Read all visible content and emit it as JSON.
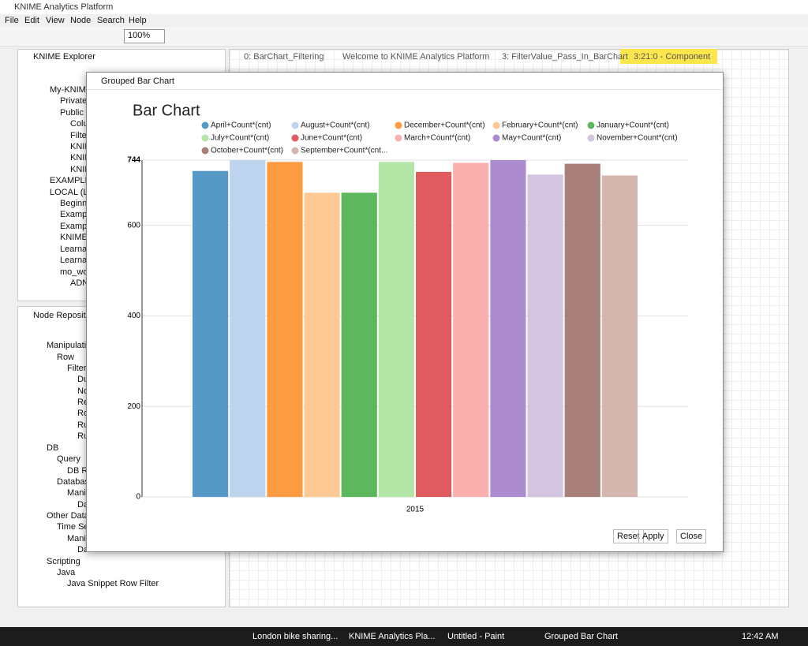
{
  "app": {
    "title": "KNIME Analytics Platform",
    "menu": [
      "File",
      "Edit",
      "View",
      "Node",
      "Search",
      "Help"
    ],
    "zoom": "100%"
  },
  "explorer": {
    "title": "KNIME Explorer",
    "items": [
      "My-KNIME",
      "Private",
      "Public",
      "Colu",
      "Filte",
      "KNIN",
      "KNIN",
      "KNIN",
      "EXAMPLES",
      "LOCAL (Lo",
      "Beginne",
      "Exampl",
      "Exampl",
      "KNIME_",
      "Learnat",
      "Learnat",
      "mo_wo",
      "ADN"
    ]
  },
  "repository": {
    "title": "Node Reposito",
    "items": [
      "Manipulatio",
      "Row",
      "Filter",
      "Du",
      "No",
      "Re",
      "Ro",
      "Ru",
      "Ru",
      "DB",
      "Query",
      "DB Ro",
      "Database",
      "Mani",
      "Da",
      "Other Data",
      "Time Ser",
      "Mani",
      "Date&Time-based Row Filter",
      "Scripting",
      "Java",
      "Java Snippet Row Filter"
    ]
  },
  "tabs": [
    "0: BarChart_Filtering",
    "Welcome to KNIME Analytics Platform",
    "3: FilterValue_Pass_In_BarChart",
    "3:21:0 - Component"
  ],
  "dialog": {
    "title": "Grouped Bar Chart",
    "buttons": [
      "Reset",
      "Apply",
      "Close"
    ],
    "chart_data": {
      "type": "bar",
      "title": "Bar Chart",
      "categories": [
        "2015"
      ],
      "ylim": [
        0,
        744
      ],
      "yticks": [
        0,
        200,
        400,
        600,
        744
      ],
      "grid": true,
      "series": [
        {
          "name": "April+Count*(cnt)",
          "color": "#5698c6",
          "values": [
            720
          ]
        },
        {
          "name": "August+Count*(cnt)",
          "color": "#bdd3ee",
          "values": [
            744
          ]
        },
        {
          "name": "December+Count*(cnt)",
          "color": "#fd9b42",
          "values": [
            740
          ]
        },
        {
          "name": "February+Count*(cnt)",
          "color": "#fdca95",
          "values": [
            672
          ]
        },
        {
          "name": "January+Count*(cnt)",
          "color": "#5db75c",
          "values": [
            672
          ]
        },
        {
          "name": "July+Count*(cnt)",
          "color": "#b3e5a7",
          "values": [
            740
          ]
        },
        {
          "name": "June+Count*(cnt)",
          "color": "#e05b5f",
          "values": [
            718
          ]
        },
        {
          "name": "March+Count*(cnt)",
          "color": "#fbb0b0",
          "values": [
            738
          ]
        },
        {
          "name": "May+Count*(cnt)",
          "color": "#ac8cce",
          "values": [
            744
          ]
        },
        {
          "name": "November+Count*(cnt)",
          "color": "#d3c5e0",
          "values": [
            712
          ]
        },
        {
          "name": "October+Count*(cnt)",
          "color": "#a97f7a",
          "values": [
            736
          ]
        },
        {
          "name": "September+Count*(cnt...",
          "color": "#d4b6ae",
          "values": [
            710
          ]
        }
      ]
    }
  },
  "taskbar": {
    "items": [
      "London bike sharing...",
      "KNIME Analytics Pla...",
      "Untitled - Paint",
      "Grouped Bar Chart"
    ],
    "time": "12:42 AM"
  }
}
